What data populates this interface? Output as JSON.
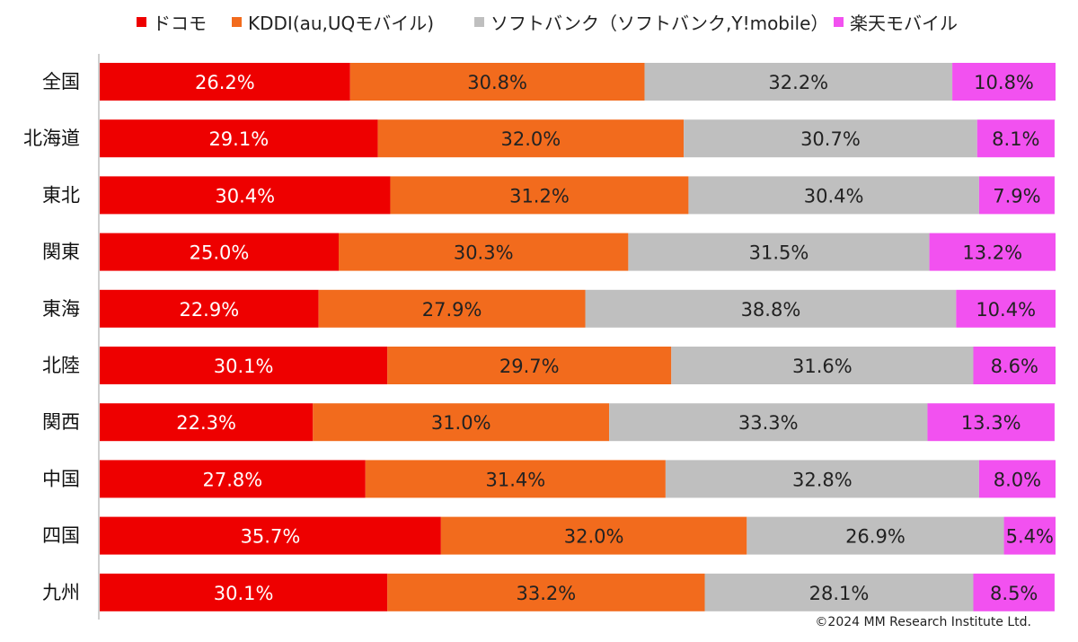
{
  "chart_data": {
    "type": "bar",
    "orientation": "horizontal",
    "stacked": true,
    "percent_stacked": true,
    "categories": [
      "全国",
      "北海道",
      "東北",
      "関東",
      "東海",
      "北陸",
      "関西",
      "中国",
      "四国",
      "九州"
    ],
    "series": [
      {
        "name": "ドコモ",
        "color": "#ee0000",
        "label_color": "#ffffff",
        "values": [
          26.2,
          29.1,
          30.4,
          25.0,
          22.9,
          30.1,
          22.3,
          27.8,
          35.7,
          30.1
        ]
      },
      {
        "name": "KDDI(au,UQモバイル)",
        "color": "#f26b1d",
        "label_color": "#222222",
        "values": [
          30.8,
          32.0,
          31.2,
          30.3,
          27.9,
          29.7,
          31.0,
          31.4,
          32.0,
          33.2
        ]
      },
      {
        "name": "ソフトバンク（ソフトバンク,Y!mobile）",
        "color": "#bfbfbf",
        "label_color": "#222222",
        "values": [
          32.2,
          30.7,
          30.4,
          31.5,
          38.8,
          31.6,
          33.3,
          32.8,
          26.9,
          28.1
        ]
      },
      {
        "name": "楽天モバイル",
        "color": "#f251f0",
        "label_color": "#222222",
        "values": [
          10.8,
          8.1,
          7.9,
          13.2,
          10.4,
          8.6,
          13.3,
          8.0,
          5.4,
          8.5
        ]
      }
    ],
    "xlim": [
      0,
      100
    ],
    "legend_position": "top",
    "grid": false,
    "credit": "©2024  MM Research Institute Ltd."
  }
}
